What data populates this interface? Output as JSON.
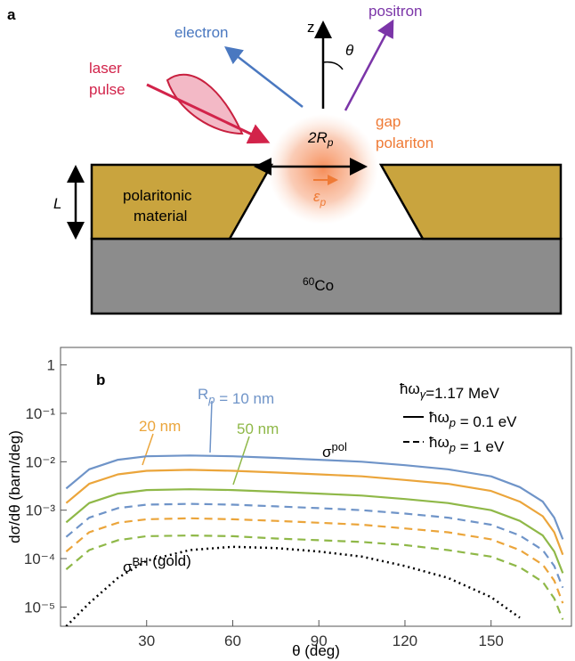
{
  "diagram": {
    "panel_label": "a",
    "z_axis": "z",
    "angle": "θ",
    "electron": "electron",
    "positron": "positron",
    "laser": [
      "laser",
      "pulse"
    ],
    "gap_polariton": [
      "gap",
      "polariton"
    ],
    "diameter": {
      "main": "2R",
      "sub": "p"
    },
    "field": {
      "main": "ε",
      "sub": "p"
    },
    "thickness": "L",
    "material": [
      "polaritonic",
      "material"
    ],
    "substrate": {
      "sup": "60",
      "main": "Co"
    }
  },
  "chart_data": {
    "type": "line",
    "panel_label": "b",
    "x_label": "θ (deg)",
    "y_label": "dσ/dθ (barn/deg)",
    "x": [
      2,
      10,
      20,
      30,
      45,
      60,
      75,
      90,
      105,
      120,
      135,
      150,
      160,
      168,
      172,
      175
    ],
    "xlim": [
      0,
      178
    ],
    "xticks": [
      30,
      60,
      90,
      120,
      150
    ],
    "log_y": true,
    "ylim": [
      4e-06,
      2.3
    ],
    "yticks": [
      1,
      {
        "value": 0.1,
        "label": "10⁻¹"
      },
      {
        "value": 0.01,
        "label": "10⁻²"
      },
      {
        "value": 0.001,
        "label": "10⁻³"
      },
      {
        "value": 0.0001,
        "label": "10⁻⁴"
      },
      {
        "value": 1e-05,
        "label": "10⁻⁵"
      }
    ],
    "series": [
      {
        "color": "#6f94c8",
        "style": "solid",
        "values": [
          0.0028,
          0.007,
          0.011,
          0.013,
          0.0135,
          0.013,
          0.012,
          0.011,
          0.01,
          0.0085,
          0.007,
          0.005,
          0.003,
          0.0015,
          0.0007,
          0.00025
        ]
      },
      {
        "color": "#eba53b",
        "style": "solid",
        "values": [
          0.0014,
          0.0035,
          0.0055,
          0.0065,
          0.0068,
          0.0065,
          0.006,
          0.0055,
          0.005,
          0.0042,
          0.0035,
          0.0025,
          0.0015,
          0.00075,
          0.00035,
          0.00012
        ]
      },
      {
        "color": "#8fb848",
        "style": "solid",
        "values": [
          0.00056,
          0.0014,
          0.0022,
          0.0026,
          0.0027,
          0.0026,
          0.0024,
          0.0022,
          0.002,
          0.0017,
          0.0014,
          0.001,
          0.0006,
          0.0003,
          0.00014,
          5e-05
        ]
      },
      {
        "color": "#6f94c8",
        "style": "dashed",
        "values": [
          0.00028,
          0.0007,
          0.0011,
          0.0013,
          0.00135,
          0.0013,
          0.0012,
          0.0011,
          0.001,
          0.00085,
          0.0007,
          0.0005,
          0.0003,
          0.00015,
          7e-05,
          2.5e-05
        ]
      },
      {
        "color": "#eba53b",
        "style": "dashed",
        "values": [
          0.00014,
          0.00035,
          0.00055,
          0.00065,
          0.00068,
          0.00065,
          0.0006,
          0.00055,
          0.0005,
          0.00042,
          0.00035,
          0.00025,
          0.00015,
          7.5e-05,
          3.5e-05,
          1.2e-05
        ]
      },
      {
        "color": "#8fb848",
        "style": "dashed",
        "values": [
          6e-05,
          0.00015,
          0.00024,
          0.00029,
          0.0003,
          0.00029,
          0.00026,
          0.00024,
          0.00022,
          0.00019,
          0.00015,
          0.00011,
          6.6e-05,
          3.3e-05,
          1.5e-05,
          5.5e-06
        ]
      },
      {
        "color": "#000000",
        "style": "dotted",
        "values": [
          4e-06,
          1.2e-05,
          4e-05,
          9e-05,
          0.00015,
          0.000175,
          0.000165,
          0.00014,
          0.00011,
          7e-05,
          4e-05,
          1.6e-05,
          6e-06,
          null,
          null,
          null
        ]
      }
    ],
    "annotations": [
      {
        "color": "#6f94c8",
        "parts": [
          {
            "text": "R"
          },
          {
            "sub": "p"
          },
          {
            "text": " = 10 nm"
          }
        ]
      },
      {
        "color": "#eba53b",
        "parts": [
          {
            "text": "20 nm"
          }
        ]
      },
      {
        "color": "#8fb848",
        "parts": [
          {
            "text": "50 nm"
          }
        ]
      },
      {
        "color": "#000000",
        "parts": [
          {
            "text": "σ"
          },
          {
            "sup": "pol"
          }
        ]
      },
      {
        "color": "#000000",
        "parts": [
          {
            "text": "σ"
          },
          {
            "sup": "BH"
          },
          {
            "text": " (gold)"
          }
        ]
      },
      {
        "color": "#000000",
        "parts": [
          {
            "text": "ħω"
          },
          {
            "sub": "γ"
          },
          {
            "text": "=1.17 MeV"
          }
        ]
      }
    ],
    "legend": [
      {
        "style": "solid",
        "parts": [
          {
            "text": "ħω"
          },
          {
            "sub": "p"
          },
          {
            "text": " = 0.1 eV"
          }
        ]
      },
      {
        "style": "dashed",
        "parts": [
          {
            "text": "ħω"
          },
          {
            "sub": "p"
          },
          {
            "text": " = 1 eV"
          }
        ]
      }
    ]
  }
}
